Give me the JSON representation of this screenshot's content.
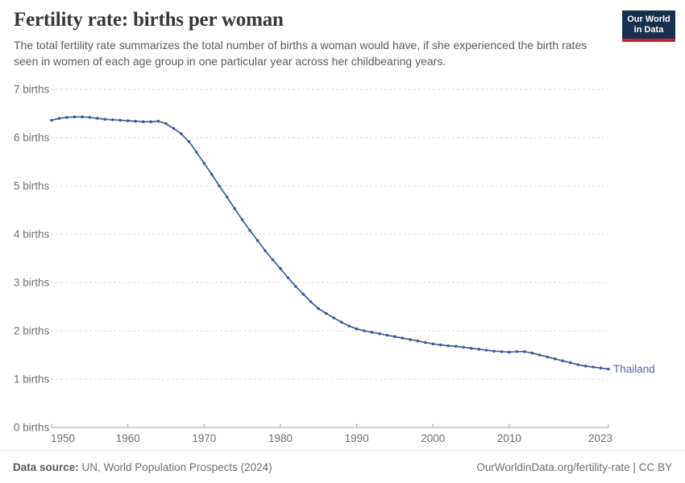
{
  "header": {
    "title": "Fertility rate: births per woman",
    "subtitle": "The total fertility rate summarizes the total number of births a woman would have, if she experienced the birth rates seen in women of each age group in one particular year across her childbearing years.",
    "logo": {
      "line1": "Our World",
      "line2": "in Data",
      "bg_color": "#17304f",
      "bar_color": "#c0242d"
    }
  },
  "chart_data": {
    "type": "line",
    "title": "Fertility rate: births per woman",
    "xlabel": "",
    "ylabel": "",
    "xlim": [
      1950,
      2023
    ],
    "ylim": [
      0,
      7
    ],
    "grid": "horizontal-dashed",
    "marker": "circle",
    "legend_position": "end-of-line-label",
    "xticks": [
      1950,
      1960,
      1970,
      1980,
      1990,
      2000,
      2010,
      2023
    ],
    "yticks": [
      {
        "value": 0,
        "label": "0 births"
      },
      {
        "value": 1,
        "label": "1 births"
      },
      {
        "value": 2,
        "label": "2 births"
      },
      {
        "value": 3,
        "label": "3 births"
      },
      {
        "value": 4,
        "label": "4 births"
      },
      {
        "value": 5,
        "label": "5 births"
      },
      {
        "value": 6,
        "label": "6 births"
      },
      {
        "value": 7,
        "label": "7 births"
      }
    ],
    "x": [
      1950,
      1951,
      1952,
      1953,
      1954,
      1955,
      1956,
      1957,
      1958,
      1959,
      1960,
      1961,
      1962,
      1963,
      1964,
      1965,
      1966,
      1967,
      1968,
      1969,
      1970,
      1971,
      1972,
      1973,
      1974,
      1975,
      1976,
      1977,
      1978,
      1979,
      1980,
      1981,
      1982,
      1983,
      1984,
      1985,
      1986,
      1987,
      1988,
      1989,
      1990,
      1991,
      1992,
      1993,
      1994,
      1995,
      1996,
      1997,
      1998,
      1999,
      2000,
      2001,
      2002,
      2003,
      2004,
      2005,
      2006,
      2007,
      2008,
      2009,
      2010,
      2011,
      2012,
      2013,
      2014,
      2015,
      2016,
      2017,
      2018,
      2019,
      2020,
      2021,
      2022,
      2023
    ],
    "series": [
      {
        "name": "Thailand",
        "color": "#3d5c97",
        "label_color": "#4c6a9c",
        "values": [
          6.36,
          6.4,
          6.42,
          6.43,
          6.43,
          6.42,
          6.4,
          6.38,
          6.37,
          6.36,
          6.35,
          6.34,
          6.33,
          6.33,
          6.34,
          6.29,
          6.19,
          6.08,
          5.92,
          5.7,
          5.47,
          5.24,
          5.0,
          4.77,
          4.53,
          4.3,
          4.08,
          3.87,
          3.66,
          3.47,
          3.29,
          3.1,
          2.92,
          2.76,
          2.6,
          2.46,
          2.36,
          2.27,
          2.18,
          2.1,
          2.04,
          2.0,
          1.97,
          1.94,
          1.91,
          1.88,
          1.85,
          1.82,
          1.79,
          1.76,
          1.73,
          1.71,
          1.69,
          1.68,
          1.66,
          1.64,
          1.62,
          1.6,
          1.58,
          1.57,
          1.56,
          1.57,
          1.57,
          1.54,
          1.5,
          1.46,
          1.42,
          1.38,
          1.34,
          1.3,
          1.27,
          1.25,
          1.23,
          1.21
        ]
      }
    ]
  },
  "footer": {
    "source_label": "Data source:",
    "source_text": " UN, World Population Prospects (2024)",
    "link_text": "OurWorldinData.org/fertility-rate",
    "separator": " | ",
    "license": "CC BY"
  }
}
